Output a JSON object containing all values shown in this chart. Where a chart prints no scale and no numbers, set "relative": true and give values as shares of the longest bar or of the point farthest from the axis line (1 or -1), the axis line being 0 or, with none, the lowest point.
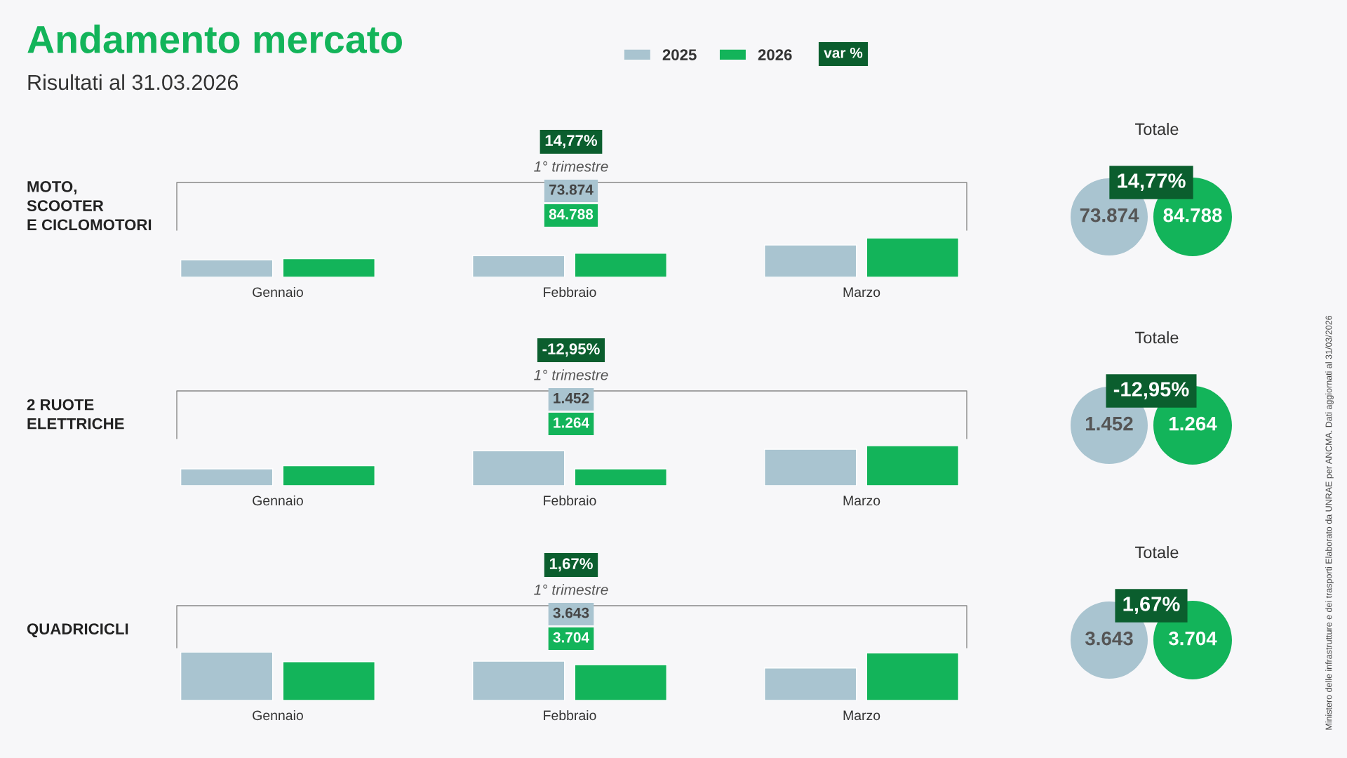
{
  "chart_data": [
    {
      "type": "bar",
      "title": "Andamento mercato",
      "subtitle": "Risultati al 31.03.2026",
      "ylabel": "MOTO,\nSCOOTER\nE CICLOMOTORI",
      "relative": true,
      "legend": "top",
      "grid": false,
      "categories": [
        "Gennaio",
        "Febbraio",
        "Marzo"
      ],
      "series": [
        {
          "name": "2025",
          "color": "#a9c4d0",
          "values": [
            0.44,
            0.55,
            0.82
          ]
        },
        {
          "name": "2026",
          "color": "#13b45a",
          "values": [
            0.47,
            0.61,
            1.0
          ]
        }
      ],
      "annotations": [
        "14,77%",
        "1° trimestre",
        "73.874",
        "84.788",
        "Totale",
        "73.874",
        "84.788",
        "14,77%",
        "var %",
        "Ministero delle infrastrutture e dei trasporti Elaborato da UNRAE per ANCMA. Dati aggiornati al 31/03/2026"
      ]
    },
    {
      "type": "bar",
      "ylabel": "2 RUOTE\nELETTRICHE",
      "relative": true,
      "grid": false,
      "categories": [
        "Gennaio",
        "Febbraio",
        "Marzo"
      ],
      "series": [
        {
          "name": "2025",
          "color": "#a9c4d0",
          "values": [
            0.42,
            0.87,
            0.91
          ]
        },
        {
          "name": "2026",
          "color": "#13b45a",
          "values": [
            0.5,
            0.42,
            1.0
          ]
        }
      ],
      "annotations": [
        "-12,95%",
        "1° trimestre",
        "1.452",
        "1.264",
        "Totale",
        "1.452",
        "1.264",
        "-12,95%"
      ]
    },
    {
      "type": "bar",
      "ylabel": "QUADRICICLI",
      "relative": true,
      "grid": false,
      "categories": [
        "Gennaio",
        "Febbraio",
        "Marzo"
      ],
      "series": [
        {
          "name": "2025",
          "color": "#a9c4d0",
          "values": [
            1.0,
            0.81,
            0.67
          ]
        },
        {
          "name": "2026",
          "color": "#13b45a",
          "values": [
            0.8,
            0.74,
            0.98
          ]
        }
      ],
      "annotations": [
        "1,67%",
        "1° trimestre",
        "3.643",
        "3.704",
        "Totale",
        "3.643",
        "3.704",
        "1,67%"
      ]
    }
  ]
}
